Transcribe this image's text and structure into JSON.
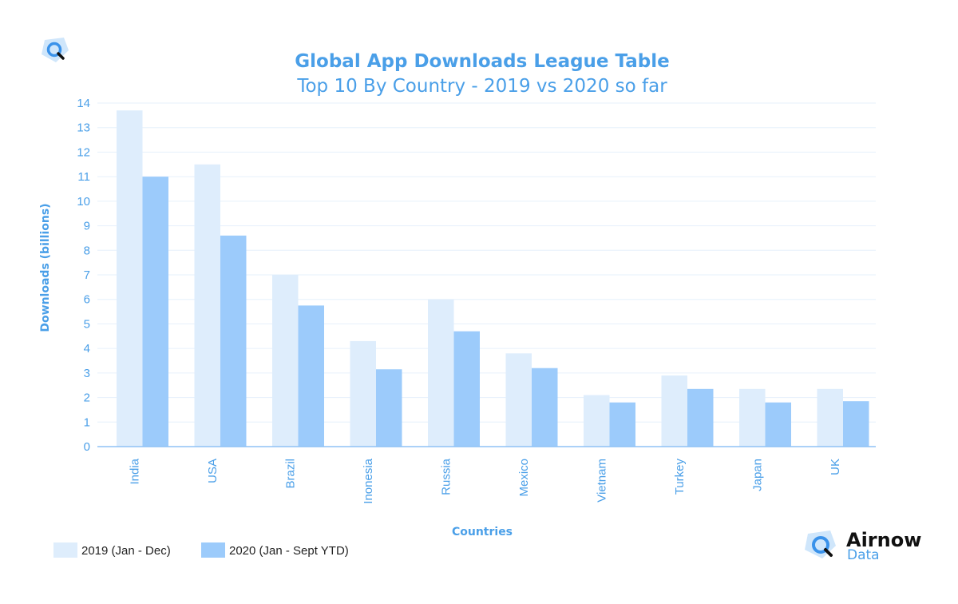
{
  "colors": {
    "accent": "#4a9fe8",
    "series_2019": "#deedfc",
    "series_2020": "#9ccbfb",
    "grid": "#e6f0fb",
    "axis": "#8fc2f5"
  },
  "brand": {
    "top_logo_icon": "magnifier-logo-icon",
    "bottom_logo_icon": "magnifier-logo-icon",
    "name": "Airnow",
    "sub": "Data"
  },
  "chart_data": {
    "type": "bar",
    "title": "Global App Downloads League Table",
    "subtitle": "Top 10 By Country - 2019 vs 2020 so far",
    "xlabel": "Countries",
    "ylabel": "Downloads (billions)",
    "ylim": [
      0,
      14
    ],
    "yticks": [
      0,
      1,
      2,
      3,
      4,
      5,
      6,
      7,
      8,
      9,
      10,
      11,
      12,
      13,
      14
    ],
    "grid": true,
    "legend_position": "bottom-left",
    "categories": [
      "India",
      "USA",
      "Brazil",
      "Inonesia",
      "Russia",
      "Mexico",
      "Vietnam",
      "Turkey",
      "Japan",
      "UK"
    ],
    "series": [
      {
        "name": "2019 (Jan - Dec)",
        "values": [
          13.7,
          11.5,
          7.0,
          4.3,
          6.0,
          3.8,
          2.1,
          2.9,
          2.35,
          2.35
        ]
      },
      {
        "name": "2020 (Jan - Sept YTD)",
        "values": [
          11.0,
          8.6,
          5.75,
          3.15,
          4.7,
          3.2,
          1.8,
          2.35,
          1.8,
          1.85
        ]
      }
    ]
  }
}
